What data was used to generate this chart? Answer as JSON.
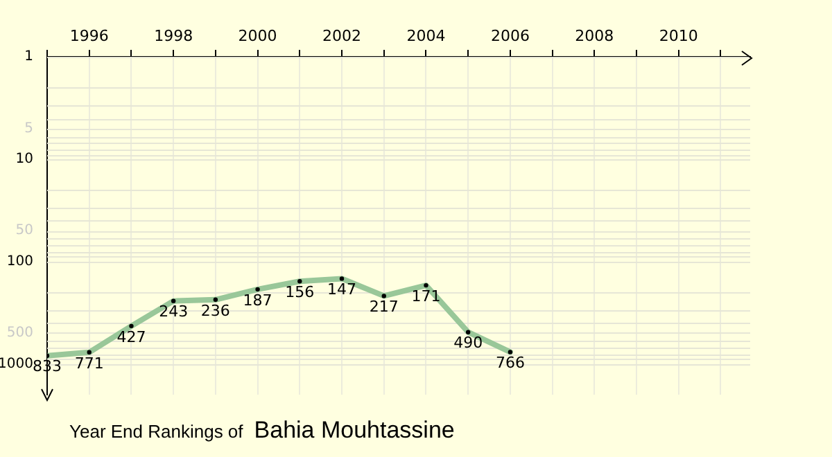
{
  "chart_data": {
    "type": "line",
    "title": "Year End Rankings of",
    "subtitle": "Bahia Mouhtassine",
    "x": [
      1995,
      1996,
      1997,
      1998,
      1999,
      2000,
      2001,
      2002,
      2003,
      2004,
      2005,
      2006
    ],
    "series": [
      {
        "color": "#99c799",
        "values": [
          833,
          771,
          427,
          243,
          236,
          187,
          156,
          147,
          217,
          171,
          490,
          766
        ]
      }
    ],
    "xlim": [
      1995,
      2011.7
    ],
    "xticks": [
      {
        "value": 1995,
        "label": null
      },
      1996,
      {
        "value": 1997,
        "label": null
      },
      1998,
      {
        "value": 1999,
        "label": null
      },
      2000,
      {
        "value": 2001,
        "label": null
      },
      2002,
      {
        "value": 2003,
        "label": null
      },
      2004,
      {
        "value": 2005,
        "label": null
      },
      2006,
      {
        "value": 2007,
        "label": null
      },
      2008,
      {
        "value": 2009,
        "label": null
      },
      2010,
      {
        "value": 2011,
        "label": null
      }
    ],
    "ylim": [
      2000,
      1
    ],
    "yticks": [
      1,
      5,
      10,
      50,
      100,
      500,
      1000
    ],
    "log": "y",
    "grid": true,
    "marker": "circle",
    "data_labels": true,
    "legend": false
  }
}
